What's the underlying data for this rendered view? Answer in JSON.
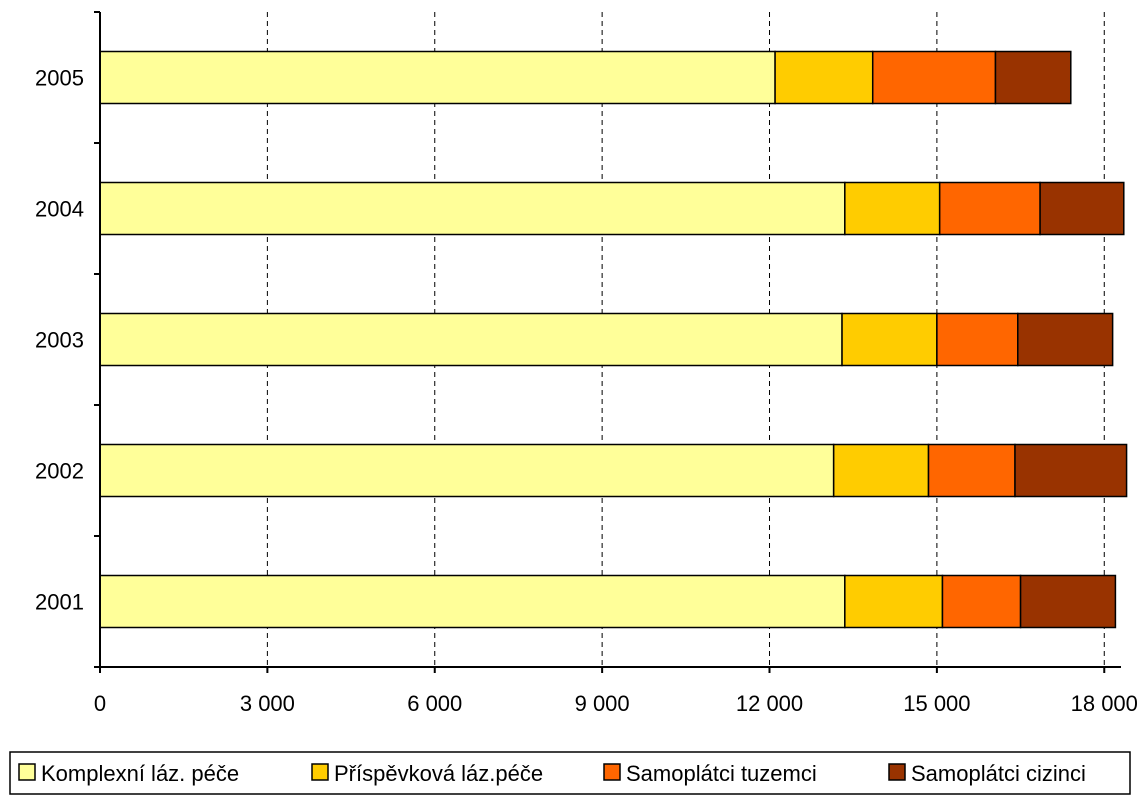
{
  "chart_data": {
    "type": "bar",
    "orientation": "horizontal",
    "stacked": true,
    "categories": [
      "2005",
      "2004",
      "2003",
      "2002",
      "2001"
    ],
    "series": [
      {
        "name": "Komplexní láz. péče",
        "color": "#FFFF99",
        "values": [
          12100,
          13350,
          13300,
          13150,
          13350
        ]
      },
      {
        "name": "Příspěvková láz.péče",
        "color": "#FFCC00",
        "values": [
          1750,
          1700,
          1700,
          1700,
          1750
        ]
      },
      {
        "name": "Samoplátci tuzemci",
        "color": "#FF6600",
        "values": [
          2200,
          1800,
          1450,
          1550,
          1400
        ]
      },
      {
        "name": "Samoplátci cizinci",
        "color": "#993300",
        "values": [
          1350,
          1500,
          1700,
          2000,
          1700
        ]
      }
    ],
    "xlim": [
      0,
      18300
    ],
    "xticks": [
      0,
      3000,
      6000,
      9000,
      12000,
      15000,
      18000
    ],
    "xtick_labels": [
      "0",
      "3 000",
      "6 000",
      "9 000",
      "12 000",
      "15 000",
      "18 000"
    ],
    "grid": "vertical dashed",
    "legend_position": "bottom",
    "title": "",
    "xlabel": "",
    "ylabel": ""
  }
}
